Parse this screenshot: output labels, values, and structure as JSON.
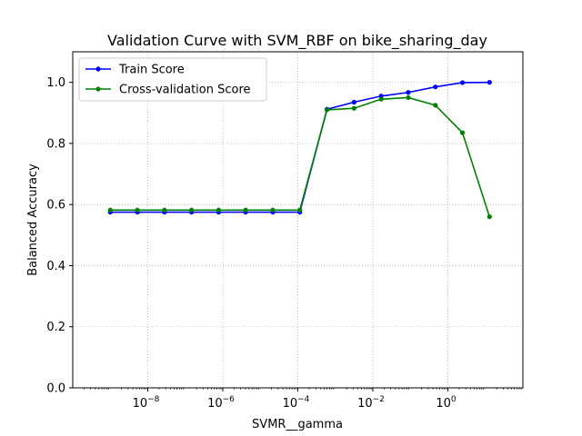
{
  "chart_data": {
    "type": "line",
    "title": "Validation Curve with SVM_RBF on bike_sharing_day",
    "xlabel": "SVMR__gamma",
    "ylabel": "Balanced Accuracy",
    "x_scale": "log",
    "xlim": [
      1e-10,
      100
    ],
    "ylim": [
      0.0,
      1.1
    ],
    "x_ticks": [
      {
        "base": "10",
        "exp": "−8",
        "value": 1e-08
      },
      {
        "base": "10",
        "exp": "−6",
        "value": 1e-06
      },
      {
        "base": "10",
        "exp": "−4",
        "value": 0.0001
      },
      {
        "base": "10",
        "exp": "−2",
        "value": 0.01
      },
      {
        "base": "10",
        "exp": "0",
        "value": 1
      }
    ],
    "y_ticks": [
      "0.0",
      "0.2",
      "0.4",
      "0.6",
      "0.8",
      "1.0"
    ],
    "y_tick_values": [
      0.0,
      0.2,
      0.4,
      0.6,
      0.8,
      1.0
    ],
    "grid": true,
    "legend_position": "upper-left",
    "x": [
      1e-09,
      5.27e-09,
      2.78e-08,
      1.47e-07,
      7.74e-07,
      4.08e-06,
      2.15e-05,
      0.000113,
      0.000599,
      0.00316,
      0.0167,
      0.088,
      0.464,
      2.45,
      12.9
    ],
    "series": [
      {
        "name": "Train Score",
        "color": "#0000ff",
        "values": [
          0.575,
          0.575,
          0.575,
          0.575,
          0.575,
          0.575,
          0.575,
          0.575,
          0.912,
          0.935,
          0.955,
          0.967,
          0.985,
          0.999,
          1.0
        ]
      },
      {
        "name": "Cross-validation Score",
        "color": "#008000",
        "values": [
          0.582,
          0.582,
          0.582,
          0.582,
          0.582,
          0.582,
          0.582,
          0.582,
          0.91,
          0.915,
          0.945,
          0.95,
          0.925,
          0.835,
          0.56
        ]
      }
    ]
  }
}
